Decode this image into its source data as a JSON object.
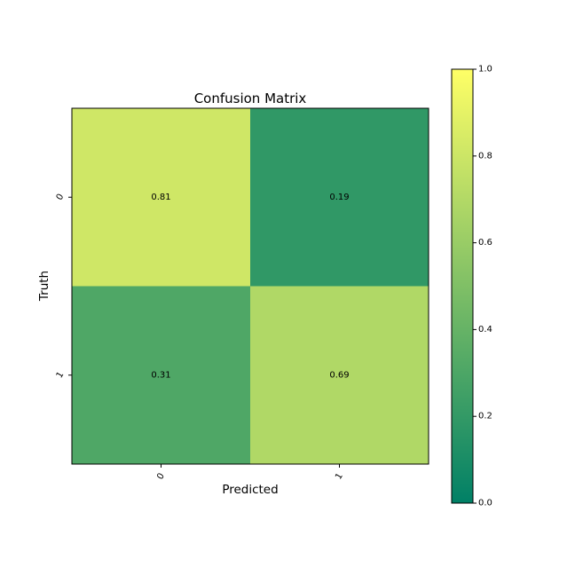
{
  "chart_data": {
    "type": "heatmap",
    "title": "Confusion Matrix",
    "xlabel": "Predicted",
    "ylabel": "Truth",
    "x_categories": [
      "0",
      "1"
    ],
    "y_categories": [
      "0",
      "1"
    ],
    "values": [
      [
        0.81,
        0.19
      ],
      [
        0.31,
        0.69
      ]
    ],
    "cell_labels": [
      [
        "0.81",
        "0.19"
      ],
      [
        "0.31",
        "0.69"
      ]
    ],
    "colormap": "summer",
    "color_low": "#008066",
    "color_high": "#ffff66",
    "colorbar": {
      "range": [
        0.0,
        1.0
      ],
      "ticks": [
        0.0,
        0.2,
        0.4,
        0.6,
        0.8,
        1.0
      ],
      "tick_labels": [
        "0.0",
        "0.2",
        "0.4",
        "0.6",
        "0.8",
        "1.0"
      ]
    },
    "grid": false
  }
}
